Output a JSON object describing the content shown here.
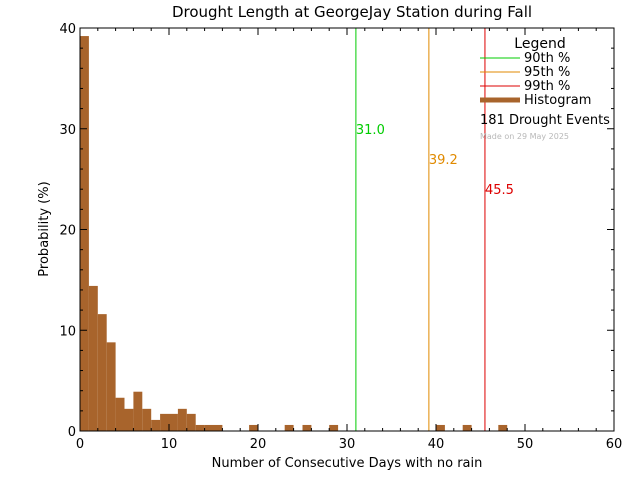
{
  "chart_data": {
    "type": "bar",
    "title": "Drought Length at GeorgeJay Station during Fall",
    "xlabel": "Number of Consecutive Days with no rain",
    "ylabel": "Probability (%)",
    "xlim": [
      0,
      60
    ],
    "ylim": [
      0,
      40
    ],
    "x_ticks": [
      "0",
      "10",
      "20",
      "30",
      "40",
      "50",
      "60"
    ],
    "y_ticks": [
      "0",
      "10",
      "20",
      "30",
      "40"
    ],
    "bin_width": 1,
    "bins": [
      {
        "x": 0,
        "value": 39.2
      },
      {
        "x": 1,
        "value": 14.4
      },
      {
        "x": 2,
        "value": 11.6
      },
      {
        "x": 3,
        "value": 8.8
      },
      {
        "x": 4,
        "value": 3.3
      },
      {
        "x": 5,
        "value": 2.2
      },
      {
        "x": 6,
        "value": 3.9
      },
      {
        "x": 7,
        "value": 2.2
      },
      {
        "x": 8,
        "value": 1.1
      },
      {
        "x": 9,
        "value": 1.7
      },
      {
        "x": 10,
        "value": 1.7
      },
      {
        "x": 11,
        "value": 2.2
      },
      {
        "x": 12,
        "value": 1.7
      },
      {
        "x": 13,
        "value": 0.6
      },
      {
        "x": 14,
        "value": 0.6
      },
      {
        "x": 15,
        "value": 0.6
      },
      {
        "x": 19,
        "value": 0.6
      },
      {
        "x": 23,
        "value": 0.6
      },
      {
        "x": 25,
        "value": 0.6
      },
      {
        "x": 28,
        "value": 0.6
      },
      {
        "x": 40,
        "value": 0.6
      },
      {
        "x": 43,
        "value": 0.6
      },
      {
        "x": 47,
        "value": 0.6
      }
    ],
    "percentiles": [
      {
        "label": "31.0",
        "value": 31.0,
        "color": "#00cc00",
        "label_y": 30
      },
      {
        "label": "39.2",
        "value": 39.2,
        "color": "#e08a00",
        "label_y": 27
      },
      {
        "label": "45.5",
        "value": 45.5,
        "color": "#dd0000",
        "label_y": 24
      }
    ],
    "bar_color": "#a8642c",
    "legend": {
      "title": "Legend",
      "placement": "top-right",
      "entries": [
        {
          "label": "90th %",
          "color": "#00cc00",
          "style": "line"
        },
        {
          "label": "95th %",
          "color": "#e08a00",
          "style": "line"
        },
        {
          "label": "99th %",
          "color": "#dd0000",
          "style": "line"
        },
        {
          "label": "Histogram",
          "color": "#a8642c",
          "style": "thick"
        }
      ],
      "events_text": "181 Drought Events",
      "made_text": "Made on 29 May 2025"
    }
  }
}
